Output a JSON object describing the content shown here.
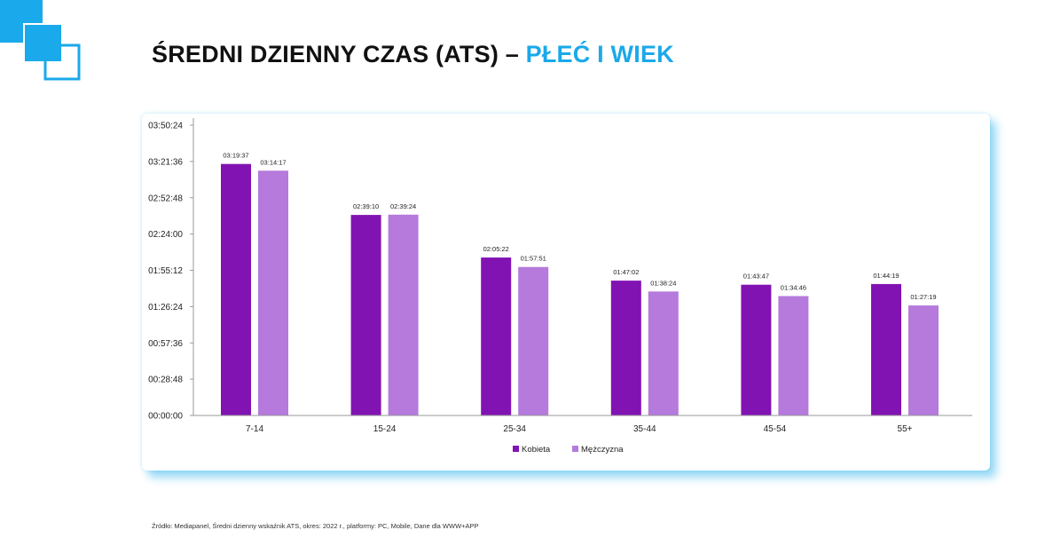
{
  "header": {
    "title_main": "ŚREDNI DZIENNY CZAS (ATS) –",
    "title_accent": "PŁEĆ I WIEK"
  },
  "colors": {
    "accent": "#1aa9ea",
    "kobieta": "#8213b3",
    "mezczyzna": "#b57adc"
  },
  "chart_data": {
    "type": "bar",
    "categories": [
      "7-14",
      "15-24",
      "25-34",
      "35-44",
      "45-54",
      "55+"
    ],
    "series": [
      {
        "name": "Kobieta",
        "color": "#8213b3",
        "values": [
          "03:19:37",
          "02:39:10",
          "02:05:22",
          "01:47:02",
          "01:43:47",
          "01:44:19"
        ]
      },
      {
        "name": "Mężczyzna",
        "color": "#b57adc",
        "values": [
          "03:14:17",
          "02:39:24",
          "01:57:51",
          "01:38:24",
          "01:34:46",
          "01:27:19"
        ]
      }
    ],
    "y_ticks": [
      "00:00:00",
      "00:28:48",
      "00:57:36",
      "01:26:24",
      "01:55:12",
      "02:24:00",
      "02:52:48",
      "03:21:36",
      "03:50:24"
    ],
    "ylim": [
      "00:00:00",
      "03:50:24"
    ],
    "xlabel": "",
    "ylabel": "",
    "grid": false,
    "legend_position": "bottom"
  },
  "footer": {
    "source": "Źródło: Mediapanel, Średni dzienny wskaźnik ATS, okres: 2022 r., platformy: PC, Mobile, Dane dla WWW+APP"
  }
}
